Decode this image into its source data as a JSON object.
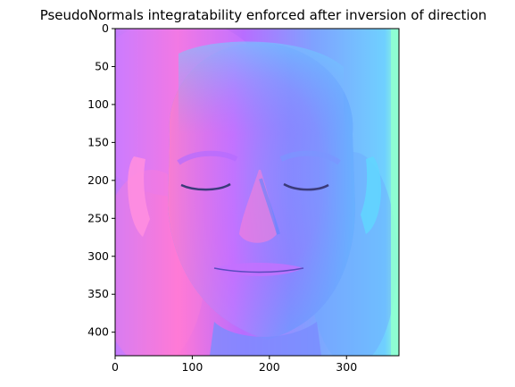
{
  "figure": {
    "title": "PseudoNormals integratability enforced after inversion of direction"
  },
  "image_axes": {
    "x_ticks": [
      "0",
      "100",
      "200",
      "300"
    ],
    "y_ticks": [
      "0",
      "50",
      "100",
      "150",
      "200",
      "250",
      "300",
      "350",
      "400"
    ],
    "xlim": [
      0,
      368
    ],
    "ylim": [
      431,
      0
    ]
  },
  "image_content": {
    "description": "normal-map rendering of a face",
    "colors": {
      "pink": "#ff6fd2",
      "magenta": "#d86cff",
      "violet": "#8f7cff",
      "blue": "#6e9cff",
      "cyan": "#6fd8ff",
      "green_edge": "#8fffc8"
    }
  }
}
